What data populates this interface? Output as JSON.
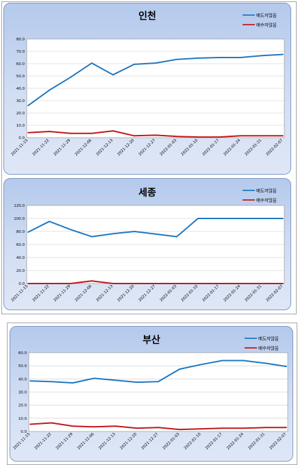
{
  "colors": {
    "sell_line": "#1f78c1",
    "buy_line": "#c0181b",
    "plot_bg": "#ffffff",
    "grid": "#c8c8c8"
  },
  "chart_data": [
    {
      "type": "line",
      "title": "인천",
      "categories": [
        "2021-11-15",
        "2021-11-22",
        "2021-11-29",
        "2021-12-06",
        "2021-12-13",
        "2021-12-20",
        "2021-12-27",
        "2022-01-03",
        "2022-01-10",
        "2022-01-17",
        "2022-01-24",
        "2022-01-31",
        "2022-02-07"
      ],
      "series": [
        {
          "name": "매도자많음",
          "color": "#1f78c1",
          "values": [
            26.0,
            38.5,
            49.0,
            60.5,
            51.0,
            59.5,
            60.5,
            63.5,
            64.5,
            65.0,
            65.0,
            66.5,
            67.5
          ]
        },
        {
          "name": "매수자많음",
          "color": "#c0181b",
          "values": [
            4.0,
            5.0,
            3.5,
            3.5,
            5.5,
            1.5,
            2.0,
            1.0,
            0.5,
            0.5,
            1.5,
            1.5,
            1.5
          ]
        }
      ],
      "ylim": [
        0,
        80
      ],
      "yticks": [
        "0.0",
        "10.0",
        "20.0",
        "30.0",
        "40.0",
        "50.0",
        "60.0",
        "70.0",
        "80.0"
      ],
      "grid": true,
      "legend": "top-right"
    },
    {
      "type": "line",
      "title": "세종",
      "categories": [
        "2021-11-15",
        "2021-11-22",
        "2021-11-29",
        "2021-12-06",
        "2021-12-13",
        "2021-12-20",
        "2021-12-27",
        "2022-01-03",
        "2022-01-10",
        "2022-01-17",
        "2022-01-24",
        "2022-01-31",
        "2022-02-07"
      ],
      "series": [
        {
          "name": "매도자많음",
          "color": "#1f78c1",
          "values": [
            79.0,
            95.5,
            83.0,
            72.0,
            76.5,
            80.0,
            76.0,
            72.0,
            100.0,
            100.0,
            100.0,
            100.0,
            100.0
          ]
        },
        {
          "name": "매수자많음",
          "color": "#c0181b",
          "values": [
            0.0,
            0.0,
            0.0,
            4.0,
            0.0,
            0.0,
            0.0,
            0.0,
            0.0,
            0.0,
            0.0,
            0.0,
            0.0
          ]
        }
      ],
      "ylim": [
        0,
        120
      ],
      "yticks": [
        "0.0",
        "20.0",
        "40.0",
        "60.0",
        "80.0",
        "100.0",
        "120.0"
      ],
      "grid": true,
      "legend": "top-right"
    },
    {
      "type": "line",
      "title": "부산",
      "categories": [
        "2021-11-15",
        "2021-11-22",
        "2021-11-29",
        "2021-12-06",
        "2021-12-13",
        "2021-12-20",
        "2021-12-27",
        "2022-01-03",
        "2022-01-10",
        "2022-01-17",
        "2022-01-24",
        "2022-01-31",
        "2022-02-07"
      ],
      "series": [
        {
          "name": "매도자많음",
          "color": "#1f78c1",
          "values": [
            38.5,
            38.0,
            37.0,
            40.5,
            39.0,
            37.5,
            38.0,
            47.5,
            51.0,
            54.0,
            54.0,
            52.0,
            49.5
          ]
        },
        {
          "name": "매수자많음",
          "color": "#c0181b",
          "values": [
            5.5,
            6.5,
            4.0,
            3.5,
            4.0,
            2.5,
            3.0,
            1.5,
            2.0,
            2.5,
            2.5,
            3.0,
            3.0
          ]
        }
      ],
      "ylim": [
        0,
        60
      ],
      "yticks": [
        "0.0",
        "10.0",
        "20.0",
        "30.0",
        "40.0",
        "50.0",
        "60.0"
      ],
      "grid": true,
      "legend": "top-right"
    }
  ]
}
